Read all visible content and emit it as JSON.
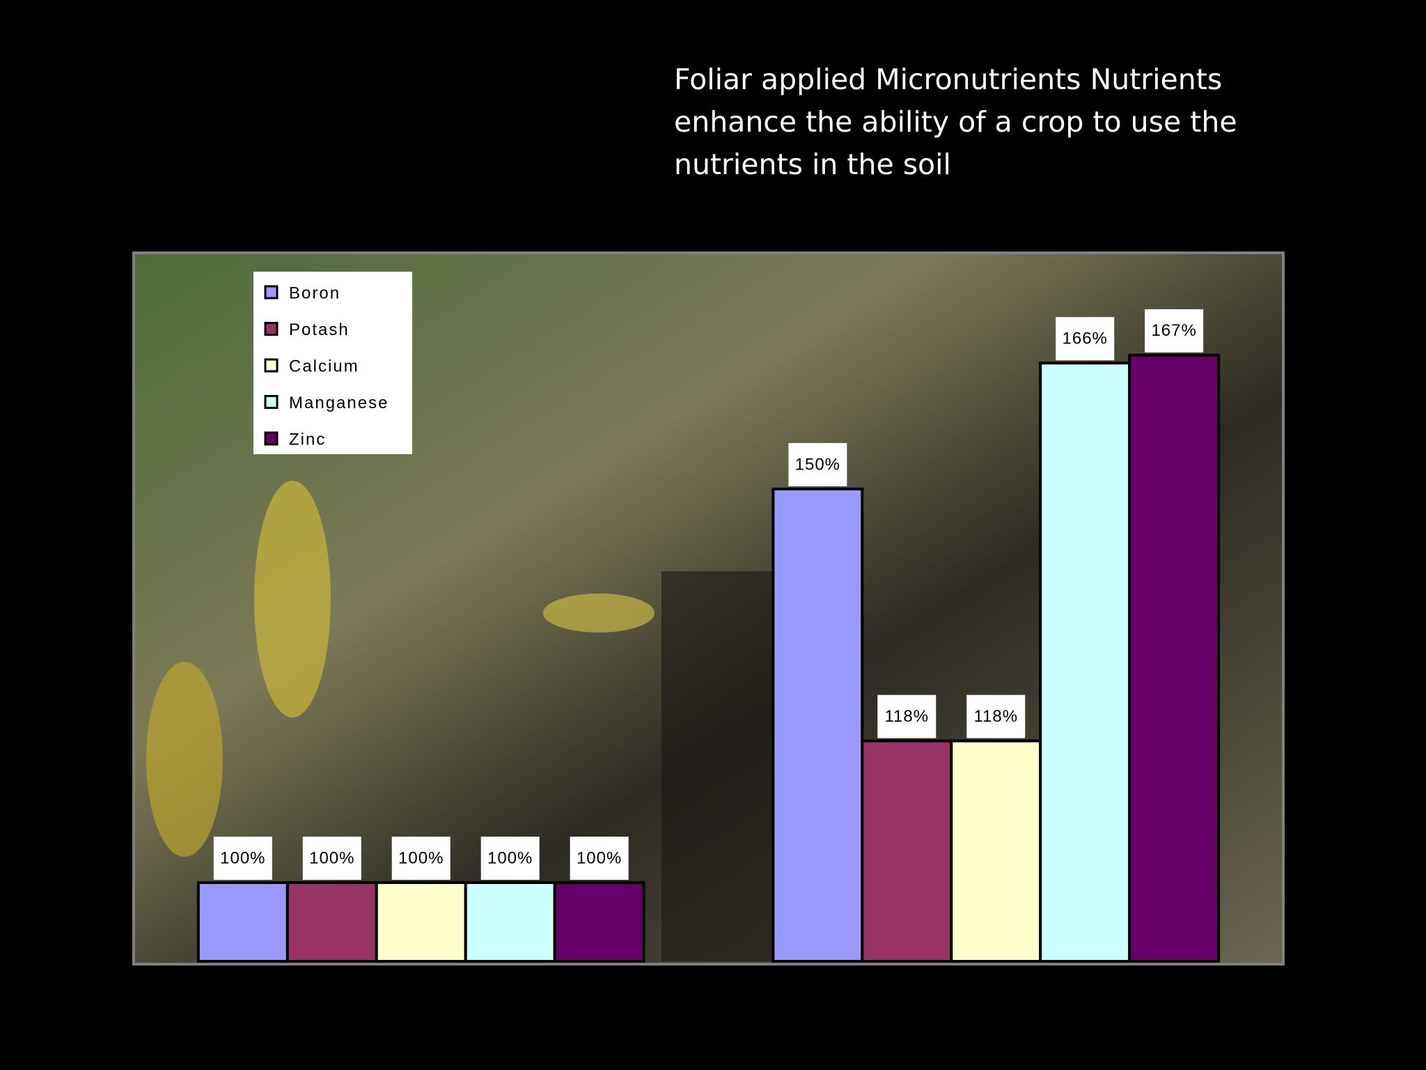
{
  "chart_data": {
    "type": "bar",
    "title": "Foliar applied Micronutrients Nutrients enhance the ability of a crop to use the nutrients in the soil",
    "categories": [
      null,
      null
    ],
    "series": [
      {
        "name": "Boron",
        "color": "#9999ff",
        "values": [
          100,
          150
        ],
        "value_labels": [
          "100%",
          "150%"
        ]
      },
      {
        "name": "Potash",
        "color": "#993366",
        "values": [
          100,
          118
        ],
        "value_labels": [
          "100%",
          "118%"
        ]
      },
      {
        "name": "Calcium",
        "color": "#ffffcc",
        "values": [
          100,
          118
        ],
        "value_labels": [
          "100%",
          "118%"
        ]
      },
      {
        "name": "Manganese",
        "color": "#ccffff",
        "values": [
          100,
          166
        ],
        "value_labels": [
          "100%",
          "166%"
        ]
      },
      {
        "name": "Zinc",
        "color": "#660066",
        "values": [
          100,
          167
        ],
        "value_labels": [
          "100%",
          "167%"
        ]
      }
    ],
    "ylim": [
      90,
      180
    ],
    "legend": "upper left"
  }
}
